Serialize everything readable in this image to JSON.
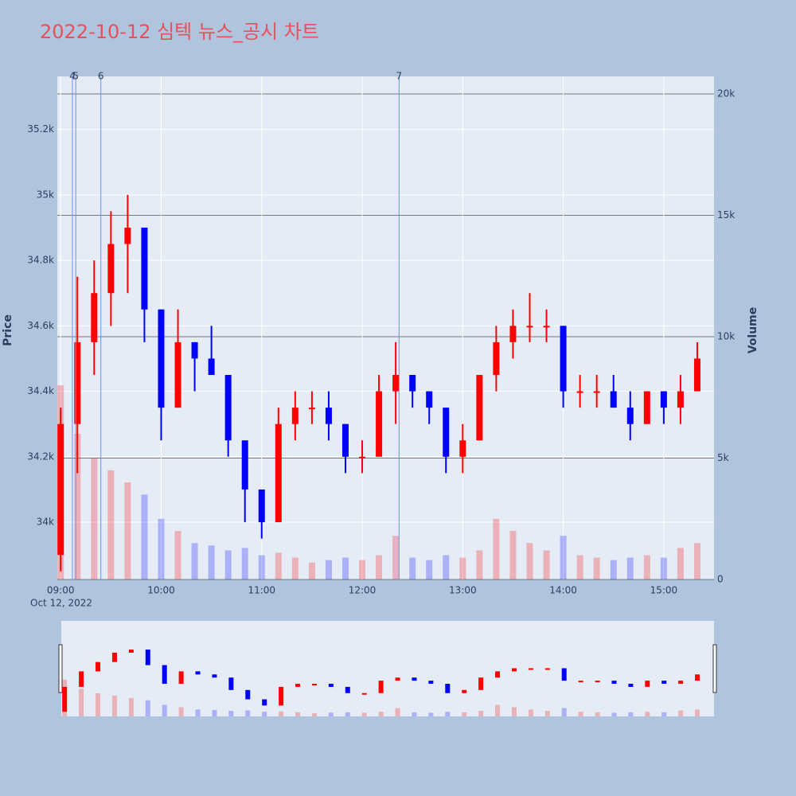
{
  "chart_data": {
    "type": "candlestick",
    "title": "2022-10-12 심텍 뉴스_공시 차트",
    "y_label": "Price",
    "y2_label": "Volume",
    "date_label": "Oct 12, 2022",
    "increasing_color": "#ff0000",
    "decreasing_color": "#0000ff",
    "xlim": [
      "08:58",
      "15:30"
    ],
    "xticks": [
      "09:00",
      "10:00",
      "11:00",
      "12:00",
      "13:00",
      "14:00",
      "15:00"
    ],
    "ylim": [
      33825,
      35362
    ],
    "yticks": [
      {
        "value": 34000,
        "label": "34k"
      },
      {
        "value": 34200,
        "label": "34.2k"
      },
      {
        "value": 34400,
        "label": "34.4k"
      },
      {
        "value": 34600,
        "label": "34.6k"
      },
      {
        "value": 34800,
        "label": "34.8k"
      },
      {
        "value": 35000,
        "label": "35k"
      },
      {
        "value": 35200,
        "label": "35.2k"
      }
    ],
    "y2lim": [
      0,
      20720
    ],
    "y2ticks": [
      0,
      {
        "value": 5000,
        "label": "5k"
      },
      {
        "value": 10000,
        "label": "10k"
      },
      {
        "value": 15000,
        "label": "15k"
      },
      {
        "value": 20000,
        "label": "20k"
      }
    ],
    "annotations": [
      {
        "x": "09:07",
        "label": "4"
      },
      {
        "x": "09:09",
        "label": "5"
      },
      {
        "x": "09:24",
        "label": "6"
      },
      {
        "x": "12:22",
        "label": "7"
      }
    ],
    "x": [
      "09:00",
      "09:10",
      "09:20",
      "09:30",
      "09:40",
      "09:50",
      "10:00",
      "10:10",
      "10:20",
      "10:30",
      "10:40",
      "10:50",
      "11:00",
      "11:10",
      "11:20",
      "11:30",
      "11:40",
      "11:50",
      "12:00",
      "12:10",
      "12:20",
      "12:30",
      "12:40",
      "12:50",
      "13:00",
      "13:10",
      "13:20",
      "13:30",
      "13:40",
      "13:50",
      "14:00",
      "14:10",
      "14:20",
      "14:30",
      "14:40",
      "14:50",
      "15:00",
      "15:10",
      "15:20"
    ],
    "open": [
      33900,
      34300,
      34550,
      34700,
      34850,
      34900,
      34650,
      34350,
      34550,
      34500,
      34450,
      34250,
      34100,
      34000,
      34300,
      34350,
      34350,
      34300,
      34200,
      34200,
      34400,
      34450,
      34400,
      34350,
      34200,
      34250,
      34450,
      34550,
      34600,
      34600,
      34600,
      34400,
      34400,
      34400,
      34350,
      34300,
      34400,
      34350,
      34400
    ],
    "high": [
      34350,
      34750,
      34800,
      34950,
      35000,
      34900,
      34650,
      34650,
      34550,
      34600,
      34450,
      34250,
      34100,
      34350,
      34400,
      34400,
      34400,
      34300,
      34250,
      34450,
      34550,
      34450,
      34400,
      34350,
      34300,
      34450,
      34600,
      34650,
      34700,
      34650,
      34600,
      34450,
      34450,
      34450,
      34400,
      34400,
      34400,
      34450,
      34550
    ],
    "low": [
      33850,
      34150,
      34450,
      34600,
      34700,
      34550,
      34250,
      34350,
      34400,
      34450,
      34200,
      34000,
      33950,
      34000,
      34250,
      34300,
      34250,
      34150,
      34150,
      34200,
      34300,
      34350,
      34300,
      34150,
      34150,
      34250,
      34400,
      34500,
      34550,
      34550,
      34350,
      34350,
      34350,
      34350,
      34250,
      34300,
      34300,
      34300,
      34400
    ],
    "close": [
      34300,
      34550,
      34700,
      34850,
      34900,
      34650,
      34350,
      34550,
      34500,
      34450,
      34250,
      34100,
      34000,
      34300,
      34350,
      34350,
      34300,
      34200,
      34200,
      34400,
      34450,
      34400,
      34350,
      34200,
      34250,
      34450,
      34550,
      34600,
      34600,
      34600,
      34400,
      34400,
      34400,
      34350,
      34300,
      34400,
      34350,
      34400,
      34500
    ],
    "volume": [
      8000,
      6000,
      5000,
      4500,
      4000,
      3500,
      2500,
      2000,
      1500,
      1400,
      1200,
      1300,
      1000,
      1100,
      900,
      700,
      800,
      900,
      800,
      1000,
      1800,
      900,
      800,
      1000,
      900,
      1200,
      2500,
      2000,
      1500,
      1200,
      1800,
      1000,
      900,
      800,
      900,
      1000,
      900,
      1300,
      1500
    ]
  }
}
